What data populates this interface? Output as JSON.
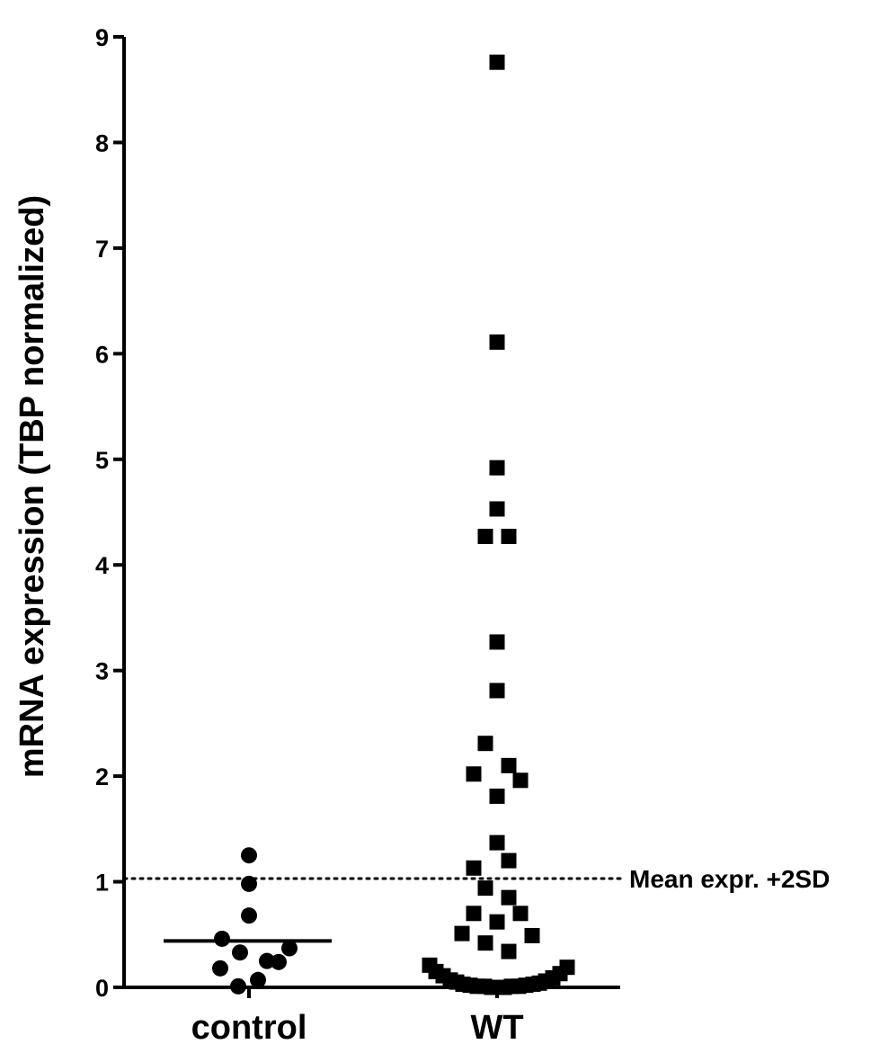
{
  "chart_data": {
    "type": "scatter",
    "ylabel": "mRNA expression (TBP normalized)",
    "xlabel": "",
    "ylim": [
      0,
      9
    ],
    "yticks": [
      0,
      1,
      2,
      3,
      4,
      5,
      6,
      7,
      8,
      9
    ],
    "categories": [
      "control",
      "WT"
    ],
    "grid": false,
    "series": [
      {
        "name": "control",
        "marker": "circle",
        "color": "#000000",
        "points": [
          {
            "x": 0,
            "y": 1.25
          },
          {
            "x": 0,
            "y": 0.98
          },
          {
            "x": 0,
            "y": 0.68
          },
          {
            "x": -0.3,
            "y": 0.46
          },
          {
            "x": 0.45,
            "y": 0.37
          },
          {
            "x": -0.1,
            "y": 0.33
          },
          {
            "x": 0.2,
            "y": 0.25
          },
          {
            "x": 0.33,
            "y": 0.24
          },
          {
            "x": -0.32,
            "y": 0.18
          },
          {
            "x": 0.1,
            "y": 0.07
          },
          {
            "x": -0.12,
            "y": 0.01
          }
        ],
        "mean": 0.44
      },
      {
        "name": "WT",
        "marker": "square",
        "color": "#000000",
        "points": [
          {
            "x": 0,
            "y": 8.76
          },
          {
            "x": 0,
            "y": 6.11
          },
          {
            "x": 0,
            "y": 4.92
          },
          {
            "x": 0,
            "y": 4.53
          },
          {
            "x": -0.13,
            "y": 4.27
          },
          {
            "x": 0.13,
            "y": 4.27
          },
          {
            "x": 0,
            "y": 3.27
          },
          {
            "x": 0,
            "y": 2.81
          },
          {
            "x": -0.13,
            "y": 2.31
          },
          {
            "x": 0.13,
            "y": 2.1
          },
          {
            "x": -0.26,
            "y": 2.02
          },
          {
            "x": 0.26,
            "y": 1.96
          },
          {
            "x": 0,
            "y": 1.81
          },
          {
            "x": 0,
            "y": 1.37
          },
          {
            "x": 0.13,
            "y": 1.2
          },
          {
            "x": -0.26,
            "y": 1.13
          },
          {
            "x": -0.13,
            "y": 0.94
          },
          {
            "x": 0.13,
            "y": 0.85
          },
          {
            "x": -0.26,
            "y": 0.7
          },
          {
            "x": 0.26,
            "y": 0.7
          },
          {
            "x": 0,
            "y": 0.62
          },
          {
            "x": -0.39,
            "y": 0.51
          },
          {
            "x": 0.39,
            "y": 0.49
          },
          {
            "x": -0.13,
            "y": 0.42
          },
          {
            "x": 0.13,
            "y": 0.34
          },
          {
            "x": -0.75,
            "y": 0.21
          },
          {
            "x": 0.78,
            "y": 0.19
          },
          {
            "x": -0.68,
            "y": 0.15
          },
          {
            "x": 0.7,
            "y": 0.13
          },
          {
            "x": -0.6,
            "y": 0.11
          },
          {
            "x": 0.62,
            "y": 0.09
          },
          {
            "x": -0.52,
            "y": 0.07
          },
          {
            "x": 0.54,
            "y": 0.06
          },
          {
            "x": -0.45,
            "y": 0.05
          },
          {
            "x": 0.47,
            "y": 0.04
          },
          {
            "x": -0.38,
            "y": 0.03
          },
          {
            "x": 0.4,
            "y": 0.03
          },
          {
            "x": -0.3,
            "y": 0.02
          },
          {
            "x": 0.32,
            "y": 0.02
          },
          {
            "x": -0.22,
            "y": 0.01
          },
          {
            "x": 0.24,
            "y": 0.01
          },
          {
            "x": -0.14,
            "y": 0.01
          },
          {
            "x": 0.16,
            "y": 0.01
          },
          {
            "x": -0.06,
            "y": 0.0
          },
          {
            "x": 0.08,
            "y": 0.0
          }
        ]
      }
    ],
    "reference_line": {
      "y": 1.03,
      "style": "dotted",
      "label": "Mean expr. +2SD"
    }
  }
}
